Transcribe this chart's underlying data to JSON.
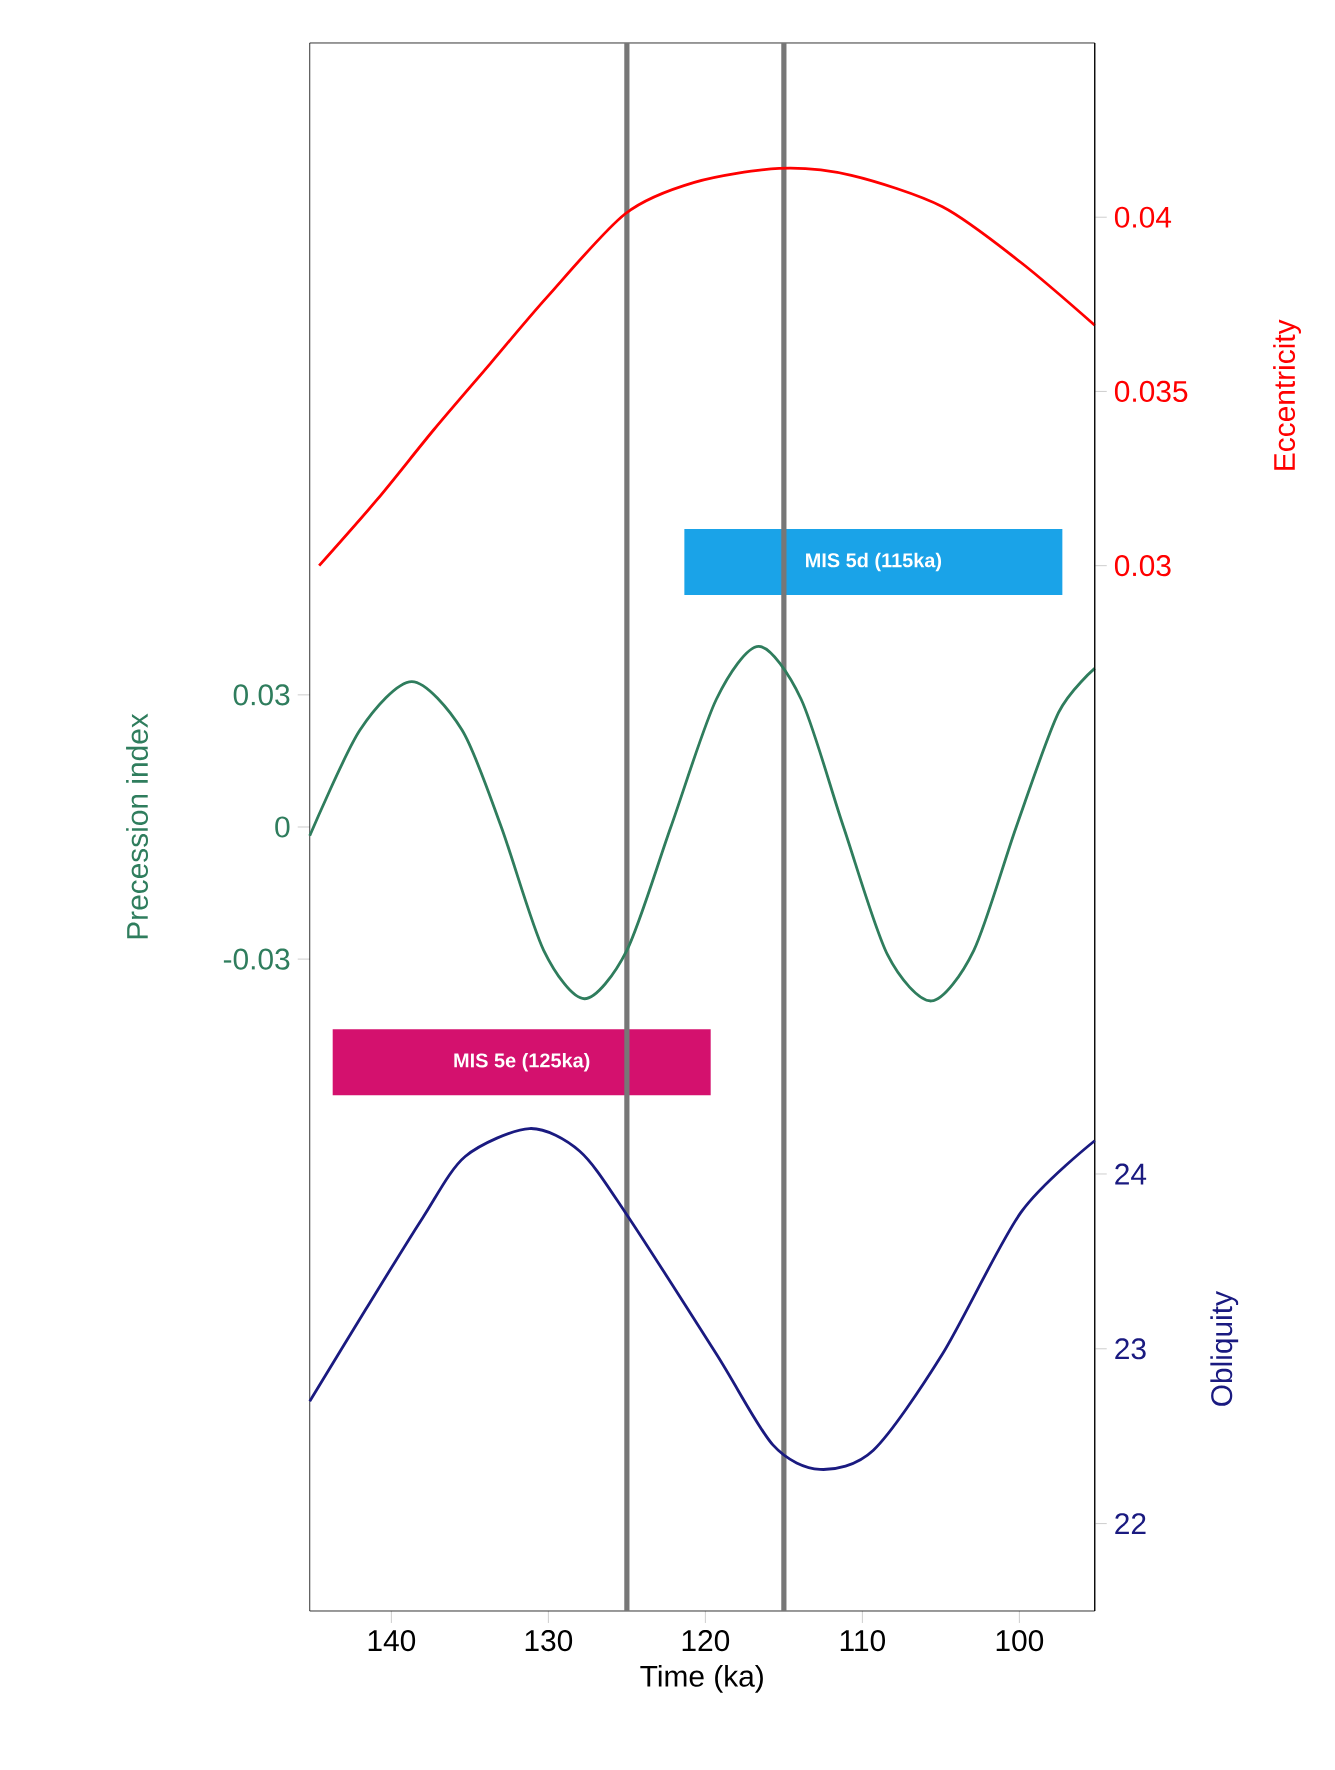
{
  "chart_data": {
    "type": "line",
    "xlabel": "Time (ka)",
    "ylabel": "Precession index",
    "y2label": "Eccentricity",
    "y3label": "Obliquity",
    "xlim": [
      145.2,
      95.2
    ],
    "xticks": [
      140,
      130,
      120,
      110,
      100
    ],
    "ylim": [
      -0.178,
      0.178
    ],
    "yticks": [
      -0.03,
      0,
      0.03
    ],
    "y2lim": [
      0,
      0.045
    ],
    "y2ticks": [
      0.03,
      0.035,
      0.04
    ],
    "y3lim": [
      21.5,
      30.47
    ],
    "y3ticks": [
      22,
      23,
      24
    ],
    "series": [
      {
        "axis": "y2",
        "color": "#ff0000",
        "x": [
          144.6,
          140.9,
          137.3,
          133.7,
          130.1,
          125.1,
          120.7,
          115.3,
          110.7,
          104.9,
          99.9,
          95.2
        ],
        "values": [
          0.03,
          0.0319,
          0.0339,
          0.0358,
          0.0377,
          0.0401,
          0.041,
          0.0414,
          0.0412,
          0.0403,
          0.0387,
          0.0369
        ]
      },
      {
        "axis": "y",
        "color": "#2f7d5d",
        "x": [
          145.2,
          142,
          138.7,
          135.5,
          133,
          130.3,
          127.7,
          125,
          122.2,
          119.3,
          116.6,
          113.9,
          111.2,
          108.4,
          105.6,
          102.9,
          100.2,
          97.5,
          95.2
        ],
        "values": [
          -0.002,
          0.022,
          0.033,
          0.022,
          0,
          -0.028,
          -0.039,
          -0.028,
          0,
          0.029,
          0.041,
          0.029,
          0,
          -0.029,
          -0.0395,
          -0.028,
          0,
          0.026,
          0.036
        ]
      },
      {
        "axis": "y3",
        "color": "#1a1a80",
        "x": [
          145.2,
          141.6,
          138,
          135.3,
          131.2,
          128,
          125.1,
          119.3,
          115.7,
          112.7,
          109.3,
          104.9,
          99.9,
          95.2
        ],
        "values": [
          22.7,
          23.23,
          23.75,
          24.1,
          24.26,
          24.13,
          23.78,
          22.97,
          22.45,
          22.31,
          22.42,
          22.97,
          23.78,
          24.19
        ]
      }
    ],
    "ref_lines": [
      {
        "axis": "x",
        "value": 125,
        "label": "MIS 5e (125ka)",
        "color": "#777777"
      },
      {
        "axis": "x",
        "value": 115,
        "label": "MIS 5d (115ka)",
        "color": "#777777"
      }
    ]
  }
}
